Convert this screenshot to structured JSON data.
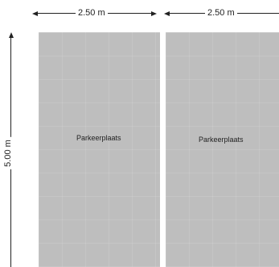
{
  "dimensions": {
    "top_left": "2.50 m",
    "top_right": "2.50 m",
    "left": "5.00 m"
  },
  "spots": [
    {
      "label": "Parkeerplaats"
    },
    {
      "label": "Parkeerplaats"
    }
  ],
  "colors": {
    "spot_fill": "#bebebe",
    "dimension_line": "#222222",
    "background": "#ffffff"
  }
}
